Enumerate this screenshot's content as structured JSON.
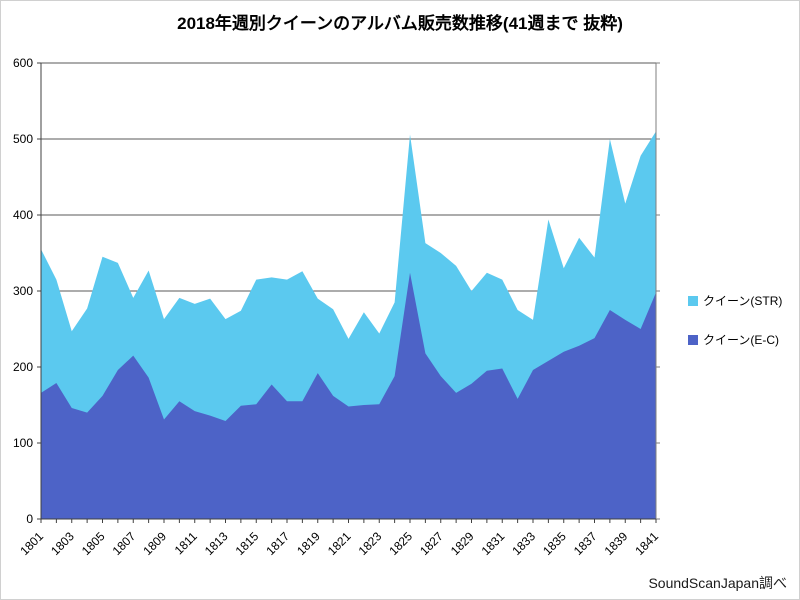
{
  "title": "2018年週別クイーンのアルバム販売数推移(41週まで 抜粋)",
  "source": "SoundScanJapan調べ",
  "legend": {
    "items": [
      {
        "label": "クイーン(STR)",
        "color": "#5BC9EF"
      },
      {
        "label": "クイーン(E-C)",
        "color": "#4D63C7"
      }
    ]
  },
  "chart_data": {
    "type": "area",
    "stacked": true,
    "title": "2018年週別クイーンのアルバム販売数推移(41週まで 抜粋)",
    "xlabel": "",
    "ylabel": "",
    "ylim": [
      0,
      600
    ],
    "ytick_interval": 100,
    "grid": "horizontal",
    "legend_position": "right",
    "x_label_every": 2,
    "categories": [
      "1801",
      "1802",
      "1803",
      "1804",
      "1805",
      "1806",
      "1807",
      "1808",
      "1809",
      "1810",
      "1811",
      "1812",
      "1813",
      "1814",
      "1815",
      "1816",
      "1817",
      "1818",
      "1819",
      "1820",
      "1821",
      "1822",
      "1823",
      "1824",
      "1825",
      "1826",
      "1827",
      "1828",
      "1829",
      "1830",
      "1831",
      "1832",
      "1833",
      "1834",
      "1835",
      "1836",
      "1837",
      "1838",
      "1839",
      "1840",
      "1841"
    ],
    "series": [
      {
        "name": "クイーン(E-C)",
        "color": "#4D63C7",
        "values": [
          166,
          179,
          146,
          140,
          162,
          196,
          215,
          186,
          131,
          155,
          142,
          136,
          129,
          149,
          151,
          177,
          155,
          155,
          192,
          162,
          148,
          150,
          151,
          188,
          324,
          218,
          188,
          166,
          178,
          195,
          198,
          158,
          196,
          208,
          220,
          228,
          238,
          275,
          262,
          250,
          298
        ]
      },
      {
        "name": "クイーン(STR)",
        "color": "#5BC9EF",
        "values": [
          189,
          136,
          101,
          137,
          183,
          141,
          76,
          141,
          132,
          136,
          141,
          154,
          134,
          125,
          164,
          141,
          160,
          171,
          98,
          114,
          89,
          122,
          93,
          97,
          182,
          145,
          162,
          167,
          122,
          129,
          117,
          117,
          66,
          186,
          110,
          142,
          106,
          225,
          153,
          228,
          212
        ]
      }
    ]
  }
}
